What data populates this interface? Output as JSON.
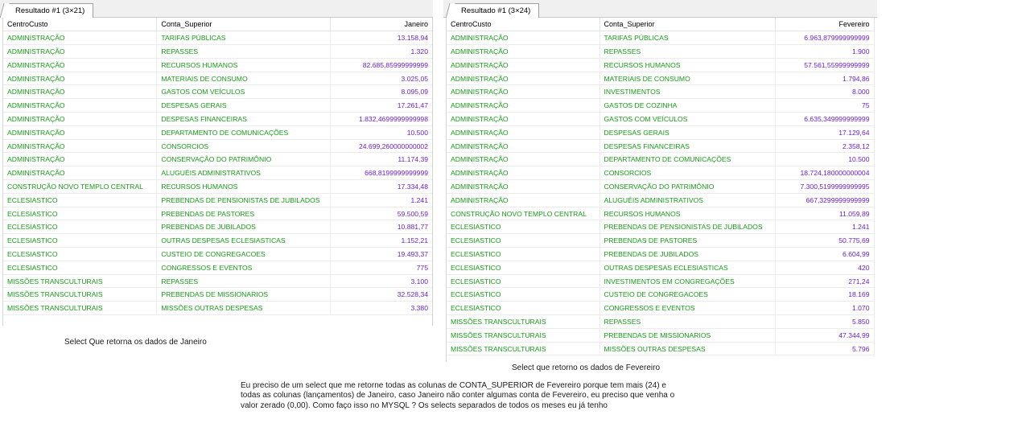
{
  "left_panel": {
    "tab_label": "Resultado #1 (3×21)",
    "columns": [
      "CentroCusto",
      "Conta_Superior",
      "Janeiro"
    ],
    "rows": [
      [
        "ADMINISTRAÇÃO",
        "TARIFAS PÚBLICAS",
        "13.158,94"
      ],
      [
        "ADMINISTRAÇÃO",
        "REPASSES",
        "1.320"
      ],
      [
        "ADMINISTRAÇÃO",
        "RECURSOS HUMANOS",
        "82.685,85999999999"
      ],
      [
        "ADMINISTRAÇÃO",
        "MATERIAIS DE CONSUMO",
        "3.025,05"
      ],
      [
        "ADMINISTRAÇÃO",
        "GASTOS COM VEÍCULOS",
        "8.095,09"
      ],
      [
        "ADMINISTRAÇÃO",
        "DESPESAS GERAIS",
        "17.261,47"
      ],
      [
        "ADMINISTRAÇÃO",
        "DESPESAS FINANCEIRAS",
        "1.832,4699999999998"
      ],
      [
        "ADMINISTRAÇÃO",
        "DEPARTAMENTO DE COMUNICAÇÕES",
        "10.500"
      ],
      [
        "ADMINISTRAÇÃO",
        "CONSORCIOS",
        "24.699,260000000002"
      ],
      [
        "ADMINISTRAÇÃO",
        "CONSERVAÇÃO DO PATRIMÔNIO",
        "11.174,39"
      ],
      [
        "ADMINISTRAÇÃO",
        "ALUGUÉIS ADMINISTRATIVOS",
        "668,8199999999999"
      ],
      [
        "CONSTRUÇÃO NOVO TEMPLO CENTRAL",
        "RECURSOS HUMANOS",
        "17.334,48"
      ],
      [
        "ECLESIASTICO",
        "PREBENDAS DE PENSIONISTAS DE JUBILADOS",
        "1.241"
      ],
      [
        "ECLESIASTICO",
        "PREBENDAS DE PASTORES",
        "59.500,59"
      ],
      [
        "ECLESIASTICO",
        "PREBENDAS DE JUBILADOS",
        "10.881,77"
      ],
      [
        "ECLESIASTICO",
        "OUTRAS DESPESAS ECLESIASTICAS",
        "1.152,21"
      ],
      [
        "ECLESIASTICO",
        "CUSTEIO DE CONGREGACOES",
        "19.493,37"
      ],
      [
        "ECLESIASTICO",
        "CONGRESSOS E EVENTOS",
        "775"
      ],
      [
        "MISSÕES TRANSCULTURAIS",
        "REPASSES",
        "3.100"
      ],
      [
        "MISSÕES TRANSCULTURAIS",
        "PREBENDAS DE MISSIONARIOS",
        "32.528,34"
      ],
      [
        "MISSÕES TRANSCULTURAIS",
        "MISSÕES OUTRAS DESPESAS",
        "3.380"
      ]
    ]
  },
  "right_panel": {
    "tab_label": "Resultado #1 (3×24)",
    "columns": [
      "CentroCusto",
      "Conta_Superior",
      "Fevereiro"
    ],
    "rows": [
      [
        "ADMINISTRAÇÃO",
        "TARIFAS PÚBLICAS",
        "6.963,879999999999"
      ],
      [
        "ADMINISTRAÇÃO",
        "REPASSES",
        "1.900"
      ],
      [
        "ADMINISTRAÇÃO",
        "RECURSOS HUMANOS",
        "57.561,55999999999"
      ],
      [
        "ADMINISTRAÇÃO",
        "MATERIAIS DE CONSUMO",
        "1.794,86"
      ],
      [
        "ADMINISTRAÇÃO",
        "INVESTIMENTOS",
        "8.000"
      ],
      [
        "ADMINISTRAÇÃO",
        "GASTOS DE COZINHA",
        "75"
      ],
      [
        "ADMINISTRAÇÃO",
        "GASTOS COM VEÍCULOS",
        "6.635,349999999999"
      ],
      [
        "ADMINISTRAÇÃO",
        "DESPESAS GERAIS",
        "17.129,64"
      ],
      [
        "ADMINISTRAÇÃO",
        "DESPESAS FINANCEIRAS",
        "2.358,12"
      ],
      [
        "ADMINISTRAÇÃO",
        "DEPARTAMENTO DE COMUNICAÇÕES",
        "10.500"
      ],
      [
        "ADMINISTRAÇÃO",
        "CONSORCIOS",
        "18.724,180000000004"
      ],
      [
        "ADMINISTRAÇÃO",
        "CONSERVAÇÃO DO PATRIMÔNIO",
        "7.300,5199999999995"
      ],
      [
        "ADMINISTRAÇÃO",
        "ALUGUÉIS ADMINISTRATIVOS",
        "667,3299999999999"
      ],
      [
        "CONSTRUÇÃO NOVO TEMPLO CENTRAL",
        "RECURSOS HUMANOS",
        "11.059,89"
      ],
      [
        "ECLESIASTICO",
        "PREBENDAS DE PENSIONISTAS DE JUBILADOS",
        "1.241"
      ],
      [
        "ECLESIASTICO",
        "PREBENDAS DE PASTORES",
        "50.775,69"
      ],
      [
        "ECLESIASTICO",
        "PREBENDAS DE JUBILADOS",
        "6.604,99"
      ],
      [
        "ECLESIASTICO",
        "OUTRAS DESPESAS ECLESIASTICAS",
        "420"
      ],
      [
        "ECLESIASTICO",
        "INVESTIMENTOS EM CONGREGAÇÕES",
        "271,24"
      ],
      [
        "ECLESIASTICO",
        "CUSTEIO DE CONGREGACOES",
        "18.169"
      ],
      [
        "ECLESIASTICO",
        "CONGRESSOS E EVENTOS",
        "1.070"
      ],
      [
        "MISSÕES TRANSCULTURAIS",
        "REPASSES",
        "5.850"
      ],
      [
        "MISSÕES TRANSCULTURAIS",
        "PREBENDAS DE MISSIONARIOS",
        "47.344,99"
      ],
      [
        "MISSÕES TRANSCULTURAIS",
        "MISSÕES OUTRAS DESPESAS",
        "5.796"
      ]
    ]
  },
  "captions": {
    "left": "Select Que retorna os dados de Janeiro",
    "right": "Select que retorno os dados de Fevereiro"
  },
  "question_lines": [
    "Eu preciso de um select que me retorne todas as colunas de CONTA_SUPERIOR de Fevereiro porque tem mais (24) e",
    "todas as colunas (lançamentos) de Janeiro, caso Janeiro não conter algumas conta de Fevereiro, eu preciso que venha o",
    "valor zerado (0,00). Como faço isso no MYSQL ? Os selects separados de todos os meses eu já tenho"
  ]
}
